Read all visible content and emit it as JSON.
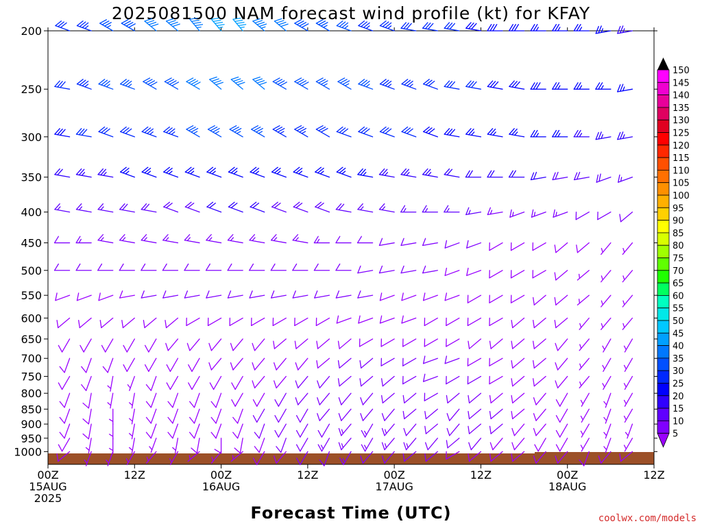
{
  "chart_data": {
    "type": "wind-barb-profile",
    "title": "2025081500 NAM forecast wind profile (kt) for KFAY",
    "xlabel": "Forecast Time (UTC)",
    "ylabel": "",
    "y_ticks": [
      "200",
      "250",
      "300",
      "350",
      "400",
      "450",
      "500",
      "550",
      "600",
      "650",
      "700",
      "750",
      "800",
      "850",
      "900",
      "950",
      "1000"
    ],
    "x_ticks": [
      {
        "hour": 0,
        "line1": "00Z",
        "line2": "15AUG",
        "line3": "2025"
      },
      {
        "hour": 12,
        "line1": "12Z",
        "line2": "",
        "line3": ""
      },
      {
        "hour": 24,
        "line1": "00Z",
        "line2": "16AUG",
        "line3": ""
      },
      {
        "hour": 36,
        "line1": "12Z",
        "line2": "",
        "line3": ""
      },
      {
        "hour": 48,
        "line1": "00Z",
        "line2": "17AUG",
        "line3": ""
      },
      {
        "hour": 60,
        "line1": "12Z",
        "line2": "",
        "line3": ""
      },
      {
        "hour": 72,
        "line1": "00Z",
        "line2": "18AUG",
        "line3": ""
      },
      {
        "hour": 84,
        "line1": "12Z",
        "line2": "",
        "line3": ""
      }
    ],
    "colorbar_labels": [
      "150",
      "145",
      "140",
      "135",
      "130",
      "125",
      "120",
      "115",
      "110",
      "105",
      "100",
      "95",
      "90",
      "85",
      "80",
      "75",
      "70",
      "65",
      "60",
      "55",
      "50",
      "45",
      "40",
      "35",
      "30",
      "25",
      "20",
      "15",
      "10",
      "5"
    ],
    "colorbar_colors": [
      "#ff00ff",
      "#f000d0",
      "#e8009a",
      "#e00060",
      "#e00020",
      "#ff0000",
      "#ff2800",
      "#ff5000",
      "#ff7000",
      "#ff9000",
      "#ffb000",
      "#ffd000",
      "#ffff00",
      "#d8ff00",
      "#a0ff00",
      "#60ff00",
      "#20ff00",
      "#00ff60",
      "#00ffc0",
      "#00e8e8",
      "#00c8ff",
      "#00a0ff",
      "#0078ff",
      "#0050ff",
      "#0028ff",
      "#0000ff",
      "#3000ff",
      "#6000ff",
      "#8000ff",
      "#9a00ff"
    ],
    "terrain_color": "#9c5028",
    "credit": "coolwx.com/models",
    "levels": [
      {
        "p": 1000,
        "dir": [
          220,
          230,
          200,
          200,
          210,
          220,
          210,
          230,
          220,
          230,
          210,
          220,
          210,
          200,
          210,
          220,
          220,
          230,
          230,
          240,
          230,
          230,
          230,
          220,
          220,
          200,
          220,
          230,
          240,
          230
        ],
        "spd": [
          6,
          8,
          6,
          6,
          6,
          6,
          6,
          6,
          6,
          7,
          8,
          9,
          11,
          11,
          13,
          12,
          12,
          11,
          11,
          9,
          8,
          8,
          8,
          9,
          8,
          8,
          9,
          8,
          6,
          4
        ]
      },
      {
        "p": 950,
        "dir": [
          200,
          210,
          190,
          180,
          190,
          200,
          190,
          190,
          180,
          190,
          200,
          200,
          210,
          210,
          220,
          210,
          220,
          220,
          220,
          230,
          220,
          220,
          220,
          210,
          210,
          210,
          200,
          210,
          220,
          300
        ],
        "spd": [
          8,
          8,
          7,
          7,
          7,
          7,
          7,
          8,
          8,
          9,
          9,
          10,
          12,
          13,
          14,
          14,
          14,
          13,
          12,
          11,
          10,
          9,
          9,
          9,
          8,
          7,
          7,
          7,
          7,
          6
        ]
      },
      {
        "p": 900,
        "dir": [
          180,
          200,
          190,
          180,
          190,
          200,
          200,
          200,
          200,
          200,
          200,
          210,
          210,
          210,
          220,
          210,
          220,
          220,
          230,
          220,
          230,
          230,
          220,
          220,
          210,
          210,
          200,
          200,
          210,
          300
        ],
        "spd": [
          8,
          8,
          8,
          7,
          7,
          8,
          8,
          9,
          9,
          9,
          10,
          10,
          11,
          12,
          13,
          13,
          13,
          12,
          12,
          11,
          10,
          10,
          9,
          9,
          8,
          7,
          6,
          7,
          6,
          5
        ]
      },
      {
        "p": 850,
        "dir": [
          190,
          200,
          190,
          180,
          190,
          200,
          200,
          200,
          200,
          200,
          210,
          210,
          210,
          220,
          220,
          220,
          220,
          230,
          230,
          220,
          230,
          230,
          230,
          220,
          210,
          210,
          200,
          210,
          210,
          300
        ],
        "spd": [
          8,
          8,
          8,
          7,
          7,
          8,
          8,
          9,
          9,
          9,
          10,
          10,
          11,
          12,
          12,
          12,
          12,
          12,
          11,
          11,
          10,
          10,
          9,
          9,
          8,
          7,
          6,
          6,
          6,
          7
        ]
      },
      {
        "p": 800,
        "dir": [
          200,
          200,
          190,
          190,
          190,
          200,
          200,
          200,
          200,
          210,
          210,
          210,
          220,
          220,
          220,
          220,
          230,
          230,
          240,
          230,
          230,
          230,
          230,
          220,
          210,
          210,
          200,
          210,
          210,
          200
        ],
        "spd": [
          8,
          8,
          8,
          7,
          7,
          8,
          8,
          8,
          9,
          9,
          9,
          10,
          10,
          11,
          11,
          11,
          11,
          11,
          11,
          10,
          10,
          9,
          9,
          9,
          8,
          7,
          6,
          6,
          6,
          7
        ]
      },
      {
        "p": 750,
        "dir": [
          200,
          210,
          200,
          190,
          200,
          200,
          210,
          210,
          210,
          210,
          220,
          220,
          220,
          220,
          230,
          230,
          230,
          240,
          250,
          240,
          240,
          240,
          230,
          230,
          220,
          220,
          210,
          210,
          210,
          200
        ],
        "spd": [
          8,
          8,
          8,
          7,
          7,
          8,
          8,
          8,
          8,
          9,
          9,
          9,
          10,
          10,
          10,
          10,
          10,
          10,
          10,
          10,
          10,
          9,
          9,
          9,
          8,
          7,
          6,
          6,
          6,
          7
        ]
      },
      {
        "p": 700,
        "dir": [
          200,
          200,
          200,
          200,
          210,
          210,
          210,
          210,
          220,
          220,
          220,
          220,
          220,
          230,
          230,
          230,
          240,
          240,
          250,
          250,
          240,
          240,
          230,
          230,
          220,
          220,
          210,
          210,
          210,
          200
        ],
        "spd": [
          8,
          8,
          8,
          8,
          8,
          8,
          8,
          8,
          8,
          8,
          9,
          9,
          9,
          9,
          10,
          10,
          10,
          10,
          10,
          10,
          9,
          9,
          9,
          8,
          8,
          7,
          7,
          6,
          6,
          6
        ]
      },
      {
        "p": 650,
        "dir": [
          210,
          210,
          210,
          210,
          210,
          210,
          220,
          220,
          220,
          220,
          220,
          230,
          230,
          230,
          230,
          240,
          240,
          240,
          240,
          240,
          230,
          230,
          230,
          230,
          220,
          220,
          210,
          210,
          210,
          210
        ],
        "spd": [
          8,
          8,
          8,
          8,
          8,
          8,
          8,
          8,
          8,
          8,
          8,
          9,
          9,
          9,
          9,
          9,
          9,
          9,
          9,
          9,
          9,
          8,
          8,
          8,
          8,
          7,
          7,
          6,
          6,
          6
        ]
      },
      {
        "p": 600,
        "dir": [
          230,
          230,
          230,
          230,
          230,
          230,
          230,
          240,
          240,
          240,
          240,
          240,
          240,
          240,
          250,
          250,
          250,
          250,
          240,
          240,
          240,
          240,
          230,
          230,
          230,
          220,
          220,
          220,
          210,
          210
        ],
        "spd": [
          8,
          8,
          8,
          8,
          8,
          9,
          9,
          9,
          9,
          9,
          9,
          9,
          9,
          9,
          9,
          9,
          9,
          9,
          9,
          8,
          8,
          8,
          8,
          8,
          8,
          7,
          7,
          7,
          6,
          6
        ]
      },
      {
        "p": 550,
        "dir": [
          250,
          250,
          250,
          250,
          260,
          260,
          260,
          260,
          260,
          260,
          260,
          260,
          260,
          260,
          260,
          260,
          250,
          250,
          250,
          250,
          240,
          240,
          240,
          230,
          230,
          230,
          220,
          220,
          220,
          210
        ],
        "spd": [
          9,
          9,
          9,
          9,
          9,
          10,
          10,
          10,
          10,
          10,
          10,
          10,
          10,
          10,
          10,
          10,
          9,
          9,
          9,
          9,
          8,
          8,
          8,
          8,
          8,
          7,
          7,
          7,
          6,
          6
        ]
      },
      {
        "p": 500,
        "dir": [
          260,
          270,
          270,
          270,
          270,
          270,
          270,
          270,
          270,
          270,
          270,
          270,
          270,
          270,
          270,
          260,
          260,
          260,
          260,
          250,
          250,
          240,
          240,
          240,
          230,
          230,
          220,
          220,
          220,
          210
        ],
        "spd": [
          10,
          10,
          11,
          11,
          11,
          12,
          12,
          12,
          12,
          12,
          12,
          12,
          11,
          11,
          11,
          11,
          10,
          10,
          10,
          9,
          9,
          9,
          8,
          8,
          8,
          7,
          7,
          7,
          6,
          6
        ]
      },
      {
        "p": 450,
        "dir": [
          270,
          270,
          270,
          280,
          280,
          280,
          280,
          280,
          280,
          280,
          280,
          280,
          280,
          270,
          270,
          270,
          260,
          260,
          260,
          250,
          250,
          240,
          240,
          240,
          230,
          230,
          220,
          220,
          220,
          210
        ],
        "spd": [
          12,
          12,
          13,
          13,
          13,
          14,
          14,
          14,
          14,
          14,
          14,
          13,
          13,
          13,
          12,
          12,
          12,
          11,
          11,
          10,
          10,
          9,
          9,
          9,
          8,
          8,
          7,
          7,
          7,
          6
        ]
      },
      {
        "p": 400,
        "dir": [
          280,
          280,
          280,
          280,
          280,
          280,
          290,
          290,
          290,
          290,
          290,
          290,
          290,
          290,
          280,
          280,
          280,
          270,
          270,
          270,
          260,
          260,
          250,
          250,
          250,
          240,
          240,
          230,
          230,
          220
        ],
        "spd": [
          16,
          16,
          17,
          17,
          18,
          18,
          19,
          19,
          20,
          20,
          20,
          19,
          19,
          18,
          18,
          17,
          17,
          16,
          16,
          15,
          15,
          14,
          14,
          13,
          13,
          12,
          12,
          11,
          11,
          10
        ]
      },
      {
        "p": 350,
        "dir": [
          280,
          280,
          280,
          280,
          290,
          290,
          290,
          290,
          290,
          290,
          290,
          290,
          290,
          290,
          290,
          280,
          280,
          280,
          280,
          280,
          270,
          270,
          270,
          260,
          260,
          260,
          250,
          250,
          250,
          240
        ],
        "spd": [
          22,
          22,
          23,
          24,
          25,
          25,
          26,
          26,
          27,
          27,
          27,
          27,
          26,
          26,
          25,
          25,
          24,
          24,
          23,
          22,
          22,
          21,
          20,
          20,
          19,
          18,
          18,
          17,
          16,
          16
        ]
      },
      {
        "p": 300,
        "dir": [
          280,
          280,
          280,
          290,
          290,
          290,
          290,
          300,
          300,
          300,
          300,
          300,
          300,
          300,
          290,
          290,
          290,
          290,
          290,
          280,
          280,
          280,
          280,
          270,
          270,
          270,
          260,
          260,
          260,
          250
        ],
        "spd": [
          28,
          29,
          30,
          31,
          32,
          33,
          34,
          35,
          35,
          35,
          35,
          34,
          33,
          32,
          31,
          31,
          30,
          30,
          29,
          28,
          27,
          27,
          26,
          25,
          25,
          24,
          23,
          23,
          22,
          21
        ]
      },
      {
        "p": 250,
        "dir": [
          280,
          280,
          290,
          290,
          290,
          300,
          300,
          300,
          310,
          310,
          310,
          300,
          300,
          300,
          300,
          290,
          290,
          290,
          290,
          280,
          280,
          280,
          280,
          270,
          270,
          270,
          270,
          260,
          260,
          260
        ],
        "spd": [
          30,
          32,
          34,
          36,
          37,
          38,
          39,
          40,
          41,
          41,
          40,
          39,
          38,
          37,
          36,
          35,
          34,
          33,
          32,
          31,
          30,
          29,
          29,
          28,
          27,
          26,
          26,
          25,
          24,
          24
        ]
      },
      {
        "p": 200,
        "dir": [
          280,
          290,
          290,
          300,
          300,
          310,
          310,
          320,
          320,
          320,
          310,
          310,
          300,
          300,
          290,
          290,
          290,
          280,
          280,
          280,
          280,
          270,
          270,
          270,
          270,
          270,
          260,
          260,
          260,
          260
        ],
        "spd": [
          28,
          30,
          33,
          36,
          38,
          40,
          42,
          44,
          45,
          45,
          43,
          41,
          39,
          37,
          35,
          34,
          33,
          32,
          31,
          30,
          29,
          28,
          28,
          27,
          26,
          26,
          25,
          24,
          24,
          23
        ]
      }
    ]
  }
}
